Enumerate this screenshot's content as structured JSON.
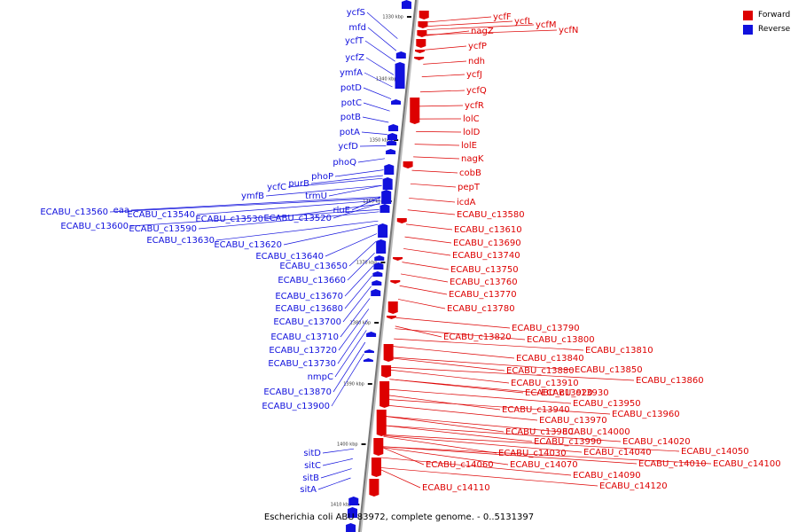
{
  "caption": "Escherichia coli ABU 83972, complete genome. - 0..5131397",
  "colors": {
    "forward": "#dd0000",
    "reverse": "#1111dd",
    "backbone": "#777777"
  },
  "legend": [
    {
      "label": "Forward",
      "color": "#dd0000"
    },
    {
      "label": "Reverse",
      "color": "#1111dd"
    }
  ],
  "ticks": [
    {
      "label": "1330 kbp"
    },
    {
      "label": "1340 kbp"
    },
    {
      "label": "1350 kbp"
    },
    {
      "label": "1360 kbp"
    },
    {
      "label": "1370 kbp"
    },
    {
      "label": "1380 kbp"
    },
    {
      "label": "1390 kbp"
    },
    {
      "label": "1400 kbp"
    },
    {
      "label": "1410 kbp"
    }
  ],
  "reverse_genes": [
    "ycfS",
    "mfd",
    "ycfT",
    "ycfZ",
    "ymfA",
    "potD",
    "potC",
    "potB",
    "potA",
    "ycfD",
    "phoQ",
    "phoP",
    "purB",
    "ycfC",
    "trmU",
    "ymfB",
    "rluE",
    "ECABU_c13560",
    "eaa",
    "ECABU_c13540",
    "ECABU_c13530",
    "ECABU_c13520",
    "ECABU_c13600",
    "ECABU_c13590",
    "ECABU_c13630",
    "ECABU_c13620",
    "ECABU_c13640",
    "ECABU_c13650",
    "ECABU_c13660",
    "ECABU_c13670",
    "ECABU_c13680",
    "ECABU_c13700",
    "ECABU_c13710",
    "ECABU_c13720",
    "ECABU_c13730",
    "nmpC",
    "ECABU_c13870",
    "ECABU_c13900",
    "sitD",
    "sitC",
    "sitB",
    "sitA"
  ],
  "forward_genes": [
    "ycfF",
    "ycfL",
    "ycfM",
    "ycfN",
    "nagZ",
    "ycfP",
    "ndh",
    "ycfJ",
    "ycfQ",
    "ycfR",
    "lolC",
    "lolD",
    "lolE",
    "nagK",
    "cobB",
    "pepT",
    "icdA",
    "ECABU_c13580",
    "ECABU_c13610",
    "ECABU_c13690",
    "ECABU_c13740",
    "ECABU_c13750",
    "ECABU_c13760",
    "ECABU_c13770",
    "ECABU_c13780",
    "ECABU_c13790",
    "ECABU_c13820",
    "ECABU_c13800",
    "ECABU_c13810",
    "ECABU_c13840",
    "ECABU_c13850",
    "ECABU_c13880",
    "ECABU_c13860",
    "ECABU_c13910",
    "ECABU_c13920",
    "ECABU_c13930",
    "ECABU_c13950",
    "ECABU_c13940",
    "ECABU_c13960",
    "ECABU_c13970",
    "ECABU_c14000",
    "ECABU_c13980",
    "ECABU_c14020",
    "ECABU_c13990",
    "ECABU_c14050",
    "ECABU_c14030",
    "ECABU_c14040",
    "ECABU_c14010",
    "ECABU_c14100",
    "ECABU_c14060",
    "ECABU_c14070",
    "ECABU_c14090",
    "ECABU_c14120",
    "ECABU_c14110"
  ]
}
